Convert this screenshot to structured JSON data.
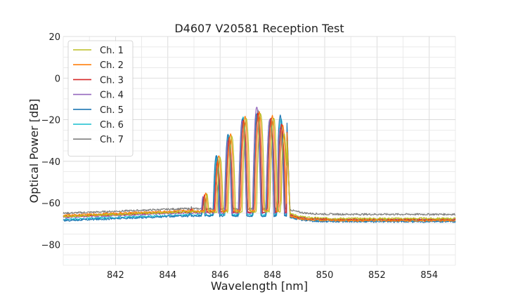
{
  "chart_data": {
    "type": "line",
    "title": "D4607 V20581 Reception Test",
    "xlabel": "Wavelength [nm]",
    "ylabel": "Optical Power [dB]",
    "xlim": [
      840,
      855
    ],
    "ylim": [
      -90,
      20
    ],
    "xticks": [
      842,
      844,
      846,
      848,
      850,
      852,
      854
    ],
    "xtick_labels": [
      "842",
      "844",
      "846",
      "848",
      "850",
      "852",
      "854"
    ],
    "yticks": [
      -80,
      -60,
      -40,
      -20,
      0,
      20
    ],
    "ytick_labels": [
      "−80",
      "−60",
      "−40",
      "−20",
      "0",
      "20"
    ],
    "grid": true,
    "legend_position": "top-left",
    "series": [
      {
        "name": "Ch. 1",
        "color": "#bcbd22",
        "baseline_left": -66.5,
        "baseline_right": -67.5,
        "peak_offset": 0.1,
        "peaks": [
          {
            "x": 844.9,
            "y": -63.5
          },
          {
            "x": 845.4,
            "y": -56.0
          },
          {
            "x": 845.9,
            "y": -38.0
          },
          {
            "x": 846.35,
            "y": -28.0
          },
          {
            "x": 846.9,
            "y": -19.0
          },
          {
            "x": 847.45,
            "y": -17.0
          },
          {
            "x": 847.95,
            "y": -19.0
          },
          {
            "x": 848.35,
            "y": -27.0
          }
        ]
      },
      {
        "name": "Ch. 2",
        "color": "#ff7f0e",
        "baseline_left": -66.0,
        "baseline_right": -68.5,
        "peak_offset": 0.05,
        "peaks": [
          {
            "x": 844.9,
            "y": -63.0
          },
          {
            "x": 845.4,
            "y": -55.0
          },
          {
            "x": 845.9,
            "y": -37.0
          },
          {
            "x": 846.35,
            "y": -27.0
          },
          {
            "x": 846.9,
            "y": -18.5
          },
          {
            "x": 847.45,
            "y": -16.5
          },
          {
            "x": 847.95,
            "y": -18.0
          },
          {
            "x": 848.35,
            "y": -23.0
          }
        ]
      },
      {
        "name": "Ch. 3",
        "color": "#d62728",
        "baseline_left": -66.5,
        "baseline_right": -68.0,
        "peak_offset": 0.0,
        "peaks": [
          {
            "x": 844.9,
            "y": -63.0
          },
          {
            "x": 845.4,
            "y": -56.0
          },
          {
            "x": 845.9,
            "y": -40.0
          },
          {
            "x": 846.35,
            "y": -28.5
          },
          {
            "x": 846.9,
            "y": -20.0
          },
          {
            "x": 847.45,
            "y": -17.0
          },
          {
            "x": 847.95,
            "y": -19.0
          },
          {
            "x": 848.35,
            "y": -22.0
          }
        ]
      },
      {
        "name": "Ch. 4",
        "color": "#9467bd",
        "baseline_left": -67.0,
        "baseline_right": -68.0,
        "peak_offset": -0.05,
        "peaks": [
          {
            "x": 844.9,
            "y": -63.5
          },
          {
            "x": 845.4,
            "y": -57.0
          },
          {
            "x": 845.9,
            "y": -50.0
          },
          {
            "x": 846.35,
            "y": -30.0
          },
          {
            "x": 846.9,
            "y": -20.5
          },
          {
            "x": 847.45,
            "y": -13.5
          },
          {
            "x": 847.95,
            "y": -20.0
          },
          {
            "x": 848.35,
            "y": -24.0
          }
        ]
      },
      {
        "name": "Ch. 5",
        "color": "#1f77b4",
        "baseline_left": -68.5,
        "baseline_right": -69.0,
        "peak_offset": -0.05,
        "peaks": [
          {
            "x": 844.9,
            "y": -64.0
          },
          {
            "x": 845.4,
            "y": -58.0
          },
          {
            "x": 845.9,
            "y": -37.0
          },
          {
            "x": 846.35,
            "y": -27.0
          },
          {
            "x": 846.9,
            "y": -19.5
          },
          {
            "x": 847.45,
            "y": -17.0
          },
          {
            "x": 847.95,
            "y": -20.0
          },
          {
            "x": 848.35,
            "y": -18.0
          }
        ]
      },
      {
        "name": "Ch. 6",
        "color": "#17becf",
        "baseline_left": -68.0,
        "baseline_right": -68.5,
        "peak_offset": -0.02,
        "peaks": [
          {
            "x": 844.9,
            "y": -64.0
          },
          {
            "x": 845.4,
            "y": -57.5
          },
          {
            "x": 845.9,
            "y": -37.5
          },
          {
            "x": 846.35,
            "y": -27.5
          },
          {
            "x": 846.9,
            "y": -19.0
          },
          {
            "x": 847.45,
            "y": -17.5
          },
          {
            "x": 847.95,
            "y": -19.5
          },
          {
            "x": 848.35,
            "y": -19.0
          }
        ]
      },
      {
        "name": "Ch. 7",
        "color": "#7f7f7f",
        "baseline_left": -65.0,
        "baseline_right": -65.5,
        "peak_offset": 0.0,
        "peaks": [
          {
            "x": 844.9,
            "y": -62.0
          },
          {
            "x": 845.4,
            "y": -57.0
          },
          {
            "x": 845.9,
            "y": -38.5
          },
          {
            "x": 846.35,
            "y": -28.5
          },
          {
            "x": 846.9,
            "y": -20.0
          },
          {
            "x": 847.45,
            "y": -15.5
          },
          {
            "x": 847.95,
            "y": -20.0
          },
          {
            "x": 848.35,
            "y": -24.0
          }
        ]
      }
    ]
  }
}
